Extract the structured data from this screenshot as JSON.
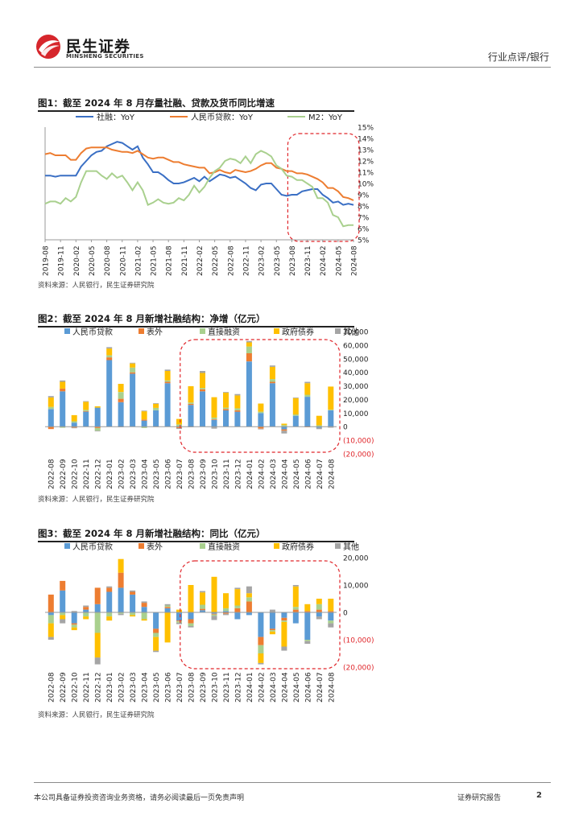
{
  "header": {
    "brand_cn": "民生证券",
    "brand_en": "MINSHENG SECURITIES",
    "category": "行业点评/银行"
  },
  "figures": [
    {
      "title": "图1：截至 2024 年 8 月存量社融、贷款及货币同比增速",
      "source": "资料来源：人民银行，民生证券研究院"
    },
    {
      "title": "图2：截至 2024 年 8 月新增社融结构：净增（亿元）",
      "source": "资料来源：人民银行，民生证券研究院"
    },
    {
      "title": "图3：截至 2024 年 8 月新增社融结构：同比（亿元）",
      "source": "资料来源：人民银行，民生证券研究院"
    }
  ],
  "footer": {
    "disclaimer": "本公司具备证券投资咨询业务资格，请务必阅读最后一页免责声明",
    "report_type": "证券研究报告",
    "page_number": "2"
  },
  "colors": {
    "tsf": "#3a6fc4",
    "loans": "#ed7d31",
    "m2": "#a9d08e",
    "rmb_loans_bar": "#5b9bd5",
    "off_balance": "#ed7d31",
    "direct_financing": "#a9d08e",
    "gov_bonds": "#ffc000",
    "others": "#a5a5a5",
    "highlight": "#e0262b"
  },
  "chart_data": [
    {
      "type": "line",
      "x": [
        "2019-08",
        "2019-09",
        "2019-10",
        "2019-11",
        "2019-12",
        "2020-01",
        "2020-02",
        "2020-03",
        "2020-04",
        "2020-05",
        "2020-06",
        "2020-07",
        "2020-08",
        "2020-09",
        "2020-10",
        "2020-11",
        "2020-12",
        "2021-01",
        "2021-02",
        "2021-03",
        "2021-04",
        "2021-05",
        "2021-06",
        "2021-07",
        "2021-08",
        "2021-09",
        "2021-10",
        "2021-11",
        "2021-12",
        "2022-01",
        "2022-02",
        "2022-03",
        "2022-04",
        "2022-05",
        "2022-06",
        "2022-07",
        "2022-08",
        "2022-09",
        "2022-10",
        "2022-11",
        "2022-12",
        "2023-01",
        "2023-02",
        "2023-03",
        "2023-04",
        "2023-05",
        "2023-06",
        "2023-07",
        "2023-08",
        "2023-09",
        "2023-10",
        "2023-11",
        "2023-12",
        "2024-01",
        "2024-02",
        "2024-03",
        "2024-04",
        "2024-05",
        "2024-06",
        "2024-07",
        "2024-08"
      ],
      "x_tick_labels": [
        "2019-08",
        "2019-11",
        "2020-02",
        "2020-05",
        "2020-08",
        "2020-11",
        "2021-02",
        "2021-05",
        "2021-08",
        "2021-11",
        "2022-02",
        "2022-05",
        "2022-08",
        "2022-11",
        "2023-02",
        "2023-05",
        "2023-08",
        "2023-11",
        "2024-02",
        "2024-05",
        "2024-08"
      ],
      "series": [
        {
          "name": "社融：YoY",
          "color": "#3a6fc4",
          "values": [
            10.7,
            10.7,
            10.6,
            10.7,
            10.7,
            10.7,
            10.7,
            11.5,
            12.0,
            12.5,
            12.8,
            12.9,
            13.3,
            13.5,
            13.7,
            13.6,
            13.3,
            13.0,
            13.3,
            12.3,
            11.7,
            11.0,
            11.0,
            10.7,
            10.3,
            10.0,
            10.0,
            10.1,
            10.3,
            10.5,
            10.2,
            10.6,
            10.2,
            10.5,
            10.8,
            10.7,
            10.5,
            10.6,
            10.3,
            10.0,
            9.6,
            9.4,
            9.9,
            10.0,
            10.0,
            9.5,
            9.0,
            8.9,
            9.0,
            9.0,
            9.3,
            9.4,
            9.5,
            9.5,
            9.0,
            8.7,
            8.3,
            8.4,
            8.1,
            8.2,
            8.1
          ]
        },
        {
          "name": "人民币贷款：YoY",
          "color": "#ed7d31",
          "values": [
            12.6,
            12.7,
            12.5,
            12.5,
            12.5,
            12.1,
            12.1,
            12.7,
            13.1,
            13.2,
            13.2,
            13.2,
            13.2,
            13.0,
            12.9,
            12.8,
            12.8,
            12.7,
            12.9,
            12.6,
            12.3,
            12.2,
            12.3,
            12.3,
            12.1,
            11.9,
            11.9,
            11.7,
            11.6,
            11.5,
            11.4,
            11.4,
            10.9,
            11.0,
            11.2,
            11.0,
            10.9,
            11.2,
            11.1,
            11.0,
            11.1,
            11.3,
            11.6,
            11.8,
            11.8,
            11.4,
            11.3,
            11.1,
            11.1,
            10.9,
            10.9,
            10.8,
            10.6,
            10.4,
            10.1,
            9.6,
            9.6,
            9.3,
            8.8,
            8.7,
            8.5
          ]
        },
        {
          "name": "M2：YoY",
          "color": "#a9d08e",
          "values": [
            8.2,
            8.4,
            8.4,
            8.2,
            8.7,
            8.4,
            8.8,
            10.1,
            11.1,
            11.1,
            11.1,
            10.7,
            10.4,
            10.9,
            10.5,
            10.7,
            10.1,
            9.4,
            10.1,
            9.4,
            8.1,
            8.3,
            8.6,
            8.3,
            8.2,
            8.3,
            8.7,
            8.5,
            9.0,
            9.8,
            9.2,
            9.7,
            10.5,
            11.1,
            11.4,
            12.0,
            12.2,
            12.1,
            11.8,
            12.4,
            11.8,
            12.6,
            12.9,
            12.7,
            12.4,
            11.6,
            11.3,
            10.7,
            10.6,
            10.3,
            10.3,
            10.0,
            9.7,
            8.7,
            8.7,
            8.3,
            7.2,
            7.0,
            6.2,
            6.3,
            6.3
          ]
        }
      ],
      "y_ticks": [
        "15%",
        "14%",
        "13%",
        "12%",
        "11%",
        "10%",
        "9%",
        "8%",
        "7%",
        "6%",
        "5%"
      ],
      "ylim": [
        5,
        15
      ],
      "legend_position": "top",
      "highlight_range": [
        "2023-08",
        "2024-08"
      ]
    },
    {
      "type": "bar",
      "stacked": true,
      "categories": [
        "2022-08",
        "2022-09",
        "2022-10",
        "2022-11",
        "2022-12",
        "2023-01",
        "2023-02",
        "2023-03",
        "2023-04",
        "2023-05",
        "2023-06",
        "2023-07",
        "2023-08",
        "2023-09",
        "2023-10",
        "2023-11",
        "2023-12",
        "2024-01",
        "2024-02",
        "2024-03",
        "2024-04",
        "2024-05",
        "2024-06",
        "2024-07",
        "2024-08"
      ],
      "series": [
        {
          "name": "人民币贷款",
          "color": "#5b9bd5",
          "values": [
            13000,
            26000,
            3000,
            11000,
            14000,
            49000,
            18000,
            39000,
            4500,
            12000,
            32000,
            500,
            16000,
            26000,
            5000,
            12000,
            11000,
            48000,
            10000,
            32000,
            -2000,
            8000,
            22000,
            -800,
            12000
          ]
        },
        {
          "name": "表外",
          "color": "#ed7d31",
          "values": [
            -1800,
            2000,
            -700,
            500,
            -1000,
            2000,
            2500,
            1000,
            800,
            -300,
            1000,
            -1000,
            800,
            1500,
            500,
            1000,
            1000,
            6000,
            -1500,
            1000,
            -1000,
            0,
            -500,
            0,
            -300
          ]
        },
        {
          "name": "直接融资",
          "color": "#a9d08e",
          "values": [
            1500,
            -800,
            1000,
            800,
            -2000,
            1500,
            5000,
            3500,
            -1000,
            1800,
            1000,
            1200,
            1000,
            1000,
            1200,
            1000,
            1500,
            5000,
            1000,
            2000,
            1200,
            1000,
            1500,
            1000,
            500
          ]
        },
        {
          "name": "政府债券",
          "color": "#ffc000",
          "values": [
            7000,
            5000,
            4500,
            6000,
            1000,
            5000,
            6000,
            3000,
            6000,
            3000,
            7000,
            4000,
            12000,
            11000,
            15000,
            11000,
            9500,
            3000,
            6000,
            9000,
            1000,
            12000,
            8500,
            7000,
            17000
          ]
        },
        {
          "name": "其他",
          "color": "#a5a5a5",
          "values": [
            1000,
            1000,
            -500,
            500,
            -500,
            1000,
            -500,
            500,
            500,
            500,
            1000,
            -700,
            -500,
            1500,
            -1500,
            500,
            1000,
            1000,
            -500,
            1000,
            -2000,
            500,
            1000,
            -1000,
            -500
          ]
        }
      ],
      "y_ticks": [
        "70,000",
        "60,000",
        "50,000",
        "40,000",
        "30,000",
        "20,000",
        "10,000",
        "0",
        "(10,000)",
        "(20,000)"
      ],
      "ylim": [
        -20000,
        70000
      ],
      "legend_position": "top",
      "highlight_range": [
        "2023-08",
        "2024-08"
      ]
    },
    {
      "type": "bar",
      "stacked": true,
      "categories": [
        "2022-08",
        "2022-09",
        "2022-10",
        "2022-11",
        "2022-12",
        "2023-01",
        "2023-02",
        "2023-03",
        "2023-04",
        "2023-05",
        "2023-06",
        "2023-07",
        "2023-08",
        "2023-09",
        "2023-10",
        "2023-11",
        "2023-12",
        "2024-01",
        "2024-02",
        "2024-03",
        "2024-04",
        "2024-05",
        "2024-06",
        "2024-07",
        "2024-08"
      ],
      "series": [
        {
          "name": "人民币贷款",
          "color": "#5b9bd5",
          "values": [
            -1000,
            8000,
            -4000,
            1000,
            3000,
            7500,
            9000,
            6500,
            2000,
            -6000,
            1500,
            -3000,
            -2500,
            800,
            -500,
            500,
            -2500,
            -1000,
            -9000,
            -6000,
            -2000,
            -4000,
            -10000,
            -1500,
            -3000
          ]
        },
        {
          "name": "表外",
          "color": "#ed7d31",
          "values": [
            6500,
            3500,
            -500,
            1000,
            6000,
            1500,
            5500,
            1000,
            1500,
            -1500,
            500,
            -300,
            -1500,
            500,
            -300,
            -500,
            1500,
            4000,
            -3000,
            -500,
            -1000,
            1000,
            500,
            1000,
            500
          ]
        },
        {
          "name": "直接融资",
          "color": "#a9d08e",
          "values": [
            -3000,
            -1000,
            -1000,
            -1500,
            -7500,
            -1500,
            -500,
            -1000,
            -2500,
            -1500,
            500,
            -500,
            -1000,
            1500,
            -500,
            1000,
            1000,
            1500,
            -3000,
            -500,
            -500,
            1000,
            -500,
            2000,
            -1000
          ]
        },
        {
          "name": "政府债券",
          "color": "#ffc000",
          "values": [
            -5000,
            -1500,
            -1000,
            -1000,
            -9000,
            -1500,
            5000,
            -500,
            -500,
            -5000,
            -11000,
            1000,
            10000,
            4500,
            13000,
            5500,
            6000,
            1500,
            -3500,
            -1000,
            -9000,
            7500,
            2500,
            2000,
            4500
          ]
        },
        {
          "name": "其他",
          "color": "#a5a5a5",
          "values": [
            -1000,
            -1500,
            500,
            500,
            -2500,
            500,
            -500,
            500,
            500,
            -500,
            500,
            -500,
            -500,
            500,
            -1500,
            -500,
            500,
            2500,
            -500,
            1000,
            -1500,
            500,
            -1000,
            -1000,
            -1500
          ]
        }
      ],
      "y_ticks": [
        "20,000",
        "10,000",
        "0",
        "(10,000)",
        "(20,000)"
      ],
      "ylim": [
        -20000,
        20000
      ],
      "legend_position": "top",
      "highlight_range": [
        "2023-08",
        "2024-08"
      ]
    }
  ]
}
